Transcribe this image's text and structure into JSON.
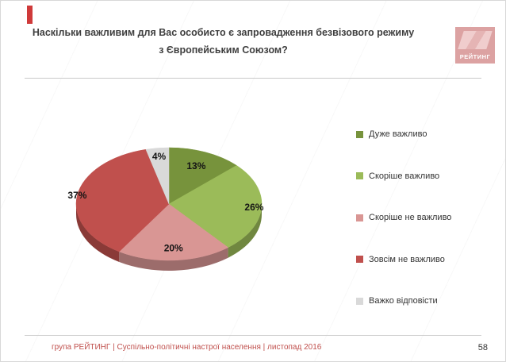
{
  "slide": {
    "title_line1": "Наскільки важливим для Вас особисто є запровадження безвізового режиму",
    "title_line2": "з Європейським Союзом?",
    "logo_text": "РЕЙТИНГ",
    "footer_text": "група РЕЙТИНГ |  Суспільно-політичні настрої населення  |  листопад 2016",
    "page_number": "58"
  },
  "chart_data": {
    "type": "pie",
    "title": "Наскільки важливим для Вас особисто є запровадження безвізового режиму з Європейським Союзом?",
    "labels": [
      "Дуже важливо",
      "Скоріше важливо",
      "Скоріше не важливо",
      "Зовсім не важливо",
      "Важко відповісти"
    ],
    "values": [
      13,
      26,
      20,
      37,
      4
    ],
    "value_labels": [
      "13%",
      "26%",
      "20%",
      "37%",
      "4%"
    ],
    "colors": [
      "#77933C",
      "#9BBB59",
      "#D99694",
      "#C0504D",
      "#D9D9D9"
    ],
    "legend_position": "right",
    "start_angle_deg": -90,
    "direction": "clockwise",
    "style": "3d-pie"
  }
}
